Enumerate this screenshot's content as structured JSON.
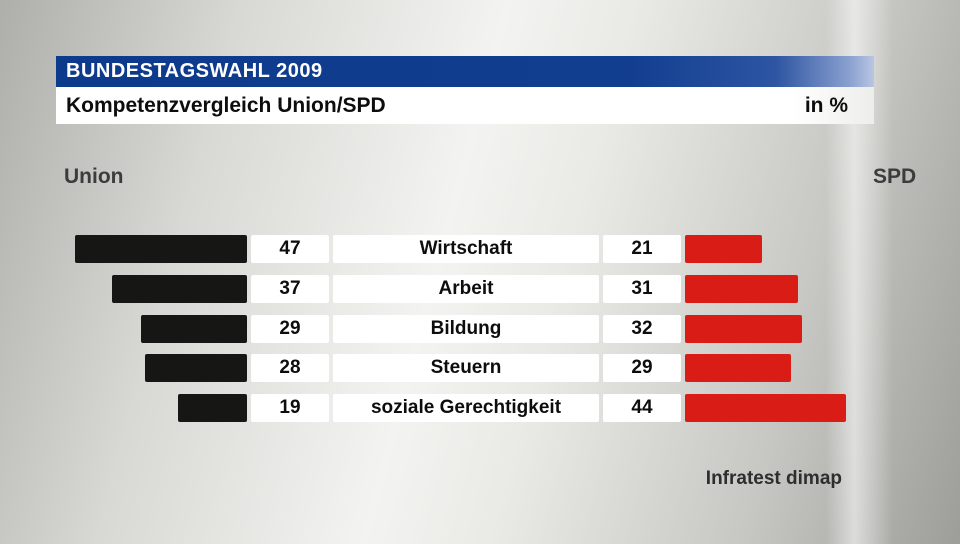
{
  "header": {
    "title": "BUNDESTAGSWAHL 2009",
    "subtitle": "Kompetenzvergleich Union/SPD",
    "unit": "in %"
  },
  "legend": {
    "left": "Union",
    "right": "SPD"
  },
  "source": "Infratest dimap",
  "colors": {
    "union_bar": "#161614",
    "spd_bar": "#da1c17",
    "header_blue": "#0e3a8c",
    "background": "#d8d8d4"
  },
  "chart_data": {
    "type": "bar",
    "orientation": "diverging-horizontal",
    "title": "Kompetenzvergleich Union/SPD",
    "unit": "in %",
    "categories": [
      "Wirtschaft",
      "Arbeit",
      "Bildung",
      "Steuern",
      "soziale Gerechtigkeit"
    ],
    "series": [
      {
        "name": "Union",
        "color": "#161614",
        "values": [
          47,
          37,
          29,
          28,
          19
        ]
      },
      {
        "name": "SPD",
        "color": "#da1c17",
        "values": [
          21,
          31,
          32,
          29,
          44
        ]
      }
    ],
    "value_range": [
      0,
      50
    ],
    "legend_position": "above",
    "grid": false
  }
}
